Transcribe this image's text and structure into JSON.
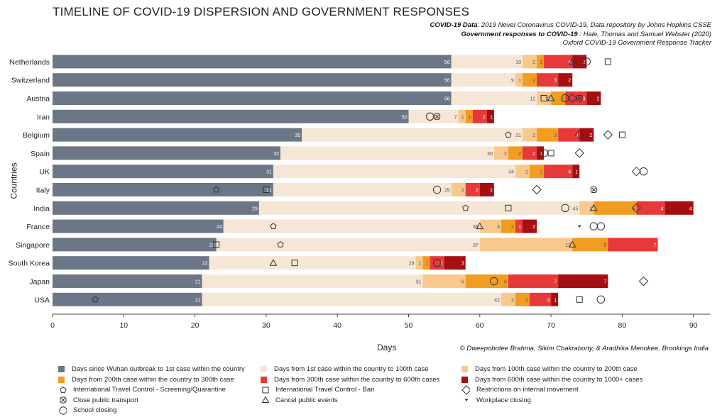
{
  "header": {
    "title": "TIMELINE OF COVID-19 DISPERSION AND GOVERNMENT RESPONSES",
    "source_line1_label": "COVID-19 Data",
    "source_line1_text": ": 2019 Novel Coronavirus COVID-19, Data repository by Johns Hopkins CSSE",
    "source_line2_label": "Government responses to COVID-19",
    "source_line2_text": " : Hale, Thomas and Samuel Webster (2020)",
    "source_line3_text": "Oxford COVID-19 Government Response Tracker"
  },
  "credit": "© Dweepobotee Brahma, Sikim Chakraborty, & Aradhika Menokee, Brookings India",
  "colors": {
    "seg0": "#6b7686",
    "seg1": "#f6e6d6",
    "seg2": "#f7c98c",
    "seg3": "#f39c22",
    "seg4": "#e8393a",
    "seg5": "#a50f12"
  },
  "chart_data": {
    "type": "bar",
    "orientation": "horizontal",
    "stacked": true,
    "xlabel": "Days",
    "ylabel": "Countries",
    "xlim": [
      0,
      93
    ],
    "xticks": [
      0,
      10,
      20,
      30,
      40,
      50,
      60,
      70,
      80,
      90
    ],
    "grid": false,
    "legend_position": "bottom",
    "categories": [
      "Netherlands",
      "Switzerland",
      "Austria",
      "Iran",
      "Belgium",
      "Spain",
      "UK",
      "Italy",
      "India",
      "France",
      "Singapore",
      "South Korea",
      "Japan",
      "USA"
    ],
    "series": [
      {
        "name": "Days since Wuhan outbreak to 1st case within the country",
        "values": [
          56,
          56,
          56,
          50,
          35,
          32,
          31,
          31,
          29,
          24,
          23,
          22,
          21,
          21
        ]
      },
      {
        "name": "Days from 1st case within the country to 100th case",
        "values": [
          10,
          9,
          12,
          7,
          31,
          30,
          34,
          25,
          45,
          36,
          37,
          29,
          31,
          42
        ]
      },
      {
        "name": "Days from 100th case within the country to 200th case",
        "values": [
          2,
          1,
          2,
          1,
          2,
          2,
          2,
          2,
          2,
          3,
          13,
          1,
          6,
          2
        ]
      },
      {
        "name": "Days from 200th case within the country to 300th case",
        "values": [
          1,
          2,
          2,
          1,
          3,
          2,
          2,
          0,
          6,
          2,
          5,
          1,
          6,
          2
        ]
      },
      {
        "name": "Days from 300th case within the country to 600th cases",
        "values": [
          4,
          3,
          3,
          2,
          3,
          2,
          4,
          2,
          4,
          1,
          7,
          2,
          7,
          3
        ]
      },
      {
        "name": "Days from 600th case within the country to 1000+ cases",
        "values": [
          2,
          2,
          2,
          1,
          2,
          1,
          1,
          2,
          4,
          2,
          0,
          3,
          7,
          1
        ]
      }
    ],
    "policy_markers": [
      {
        "country": "Netherlands",
        "markers": [
          {
            "type": "cancel-events",
            "x": 73
          },
          {
            "type": "school-closing",
            "x": 75
          },
          {
            "type": "travel-ban",
            "x": 78
          }
        ]
      },
      {
        "country": "Austria",
        "markers": [
          {
            "type": "travel-ban",
            "x": 69
          },
          {
            "type": "cancel-events",
            "x": 70
          },
          {
            "type": "school-closing",
            "x": 72
          },
          {
            "type": "internal-movement",
            "x": 73
          },
          {
            "type": "public-transport",
            "x": 74
          }
        ]
      },
      {
        "country": "Iran",
        "markers": [
          {
            "type": "school-closing",
            "x": 53
          },
          {
            "type": "public-transport",
            "x": 54
          }
        ]
      },
      {
        "country": "Belgium",
        "markers": [
          {
            "type": "screening",
            "x": 64
          },
          {
            "type": "internal-movement",
            "x": 74
          },
          {
            "type": "internal-movement",
            "x": 78
          },
          {
            "type": "travel-ban",
            "x": 80
          }
        ]
      },
      {
        "country": "Spain",
        "markers": [
          {
            "type": "school-closing",
            "x": 69
          },
          {
            "type": "travel-ban",
            "x": 70
          },
          {
            "type": "internal-movement",
            "x": 74
          }
        ]
      },
      {
        "country": "UK",
        "markers": [
          {
            "type": "internal-movement",
            "x": 82
          },
          {
            "type": "school-closing",
            "x": 83
          }
        ]
      },
      {
        "country": "Italy",
        "markers": [
          {
            "type": "screening",
            "x": 23
          },
          {
            "type": "travel-ban",
            "x": 30
          },
          {
            "type": "school-closing",
            "x": 54
          },
          {
            "type": "internal-movement",
            "x": 68
          },
          {
            "type": "public-transport",
            "x": 76
          }
        ]
      },
      {
        "country": "India",
        "markers": [
          {
            "type": "screening",
            "x": 58
          },
          {
            "type": "travel-ban",
            "x": 64
          },
          {
            "type": "school-closing",
            "x": 72
          },
          {
            "type": "cancel-events",
            "x": 76
          },
          {
            "type": "internal-movement",
            "x": 82
          }
        ]
      },
      {
        "country": "France",
        "markers": [
          {
            "type": "screening",
            "x": 31
          },
          {
            "type": "cancel-events",
            "x": 60
          },
          {
            "type": "workplace-closing",
            "x": 74
          },
          {
            "type": "school-closing",
            "x": 76
          },
          {
            "type": "school-closing",
            "x": 77
          }
        ]
      },
      {
        "country": "Singapore",
        "markers": [
          {
            "type": "travel-ban",
            "x": 23
          },
          {
            "type": "screening",
            "x": 32
          },
          {
            "type": "cancel-events",
            "x": 73
          }
        ]
      },
      {
        "country": "South Korea",
        "markers": [
          {
            "type": "cancel-events",
            "x": 31
          },
          {
            "type": "travel-ban",
            "x": 34
          },
          {
            "type": "school-closing",
            "x": 54
          }
        ]
      },
      {
        "country": "Japan",
        "markers": [
          {
            "type": "school-closing",
            "x": 62
          },
          {
            "type": "internal-movement",
            "x": 83
          }
        ]
      },
      {
        "country": "USA",
        "markers": [
          {
            "type": "screening",
            "x": 6
          },
          {
            "type": "travel-ban",
            "x": 74
          },
          {
            "type": "school-closing",
            "x": 77
          }
        ]
      }
    ]
  },
  "legend": {
    "items": [
      {
        "kind": "swatch",
        "color_key": "seg0",
        "label": "Days since Wuhan outbreak to 1st case within the country"
      },
      {
        "kind": "swatch",
        "color_key": "seg1",
        "label": "Days from 1st case within the country to 100th case"
      },
      {
        "kind": "swatch",
        "color_key": "seg2",
        "label": "Days from 100th case within the country to 200th case"
      },
      {
        "kind": "swatch",
        "color_key": "seg3",
        "label": "Days from 200th case within the country to 300th case"
      },
      {
        "kind": "swatch",
        "color_key": "seg4",
        "label": "Days from 300th case within the country to 600th cases"
      },
      {
        "kind": "swatch",
        "color_key": "seg5",
        "label": "Days from 600th case within the country to 1000+ cases"
      },
      {
        "kind": "symbol",
        "icon": "screening",
        "label": "International Travel Control - Screening/Quarantine"
      },
      {
        "kind": "symbol",
        "icon": "travel-ban",
        "label": "International Travel Control - Ban"
      },
      {
        "kind": "symbol",
        "icon": "internal-movement",
        "label": "Restrictions on internal movement"
      },
      {
        "kind": "symbol",
        "icon": "public-transport",
        "label": "Close public transport"
      },
      {
        "kind": "symbol",
        "icon": "cancel-events",
        "label": "Cancel public events"
      },
      {
        "kind": "symbol",
        "icon": "workplace-closing",
        "label": "Workplace closing"
      },
      {
        "kind": "symbol",
        "icon": "school-closing",
        "label": "School closing"
      }
    ]
  }
}
